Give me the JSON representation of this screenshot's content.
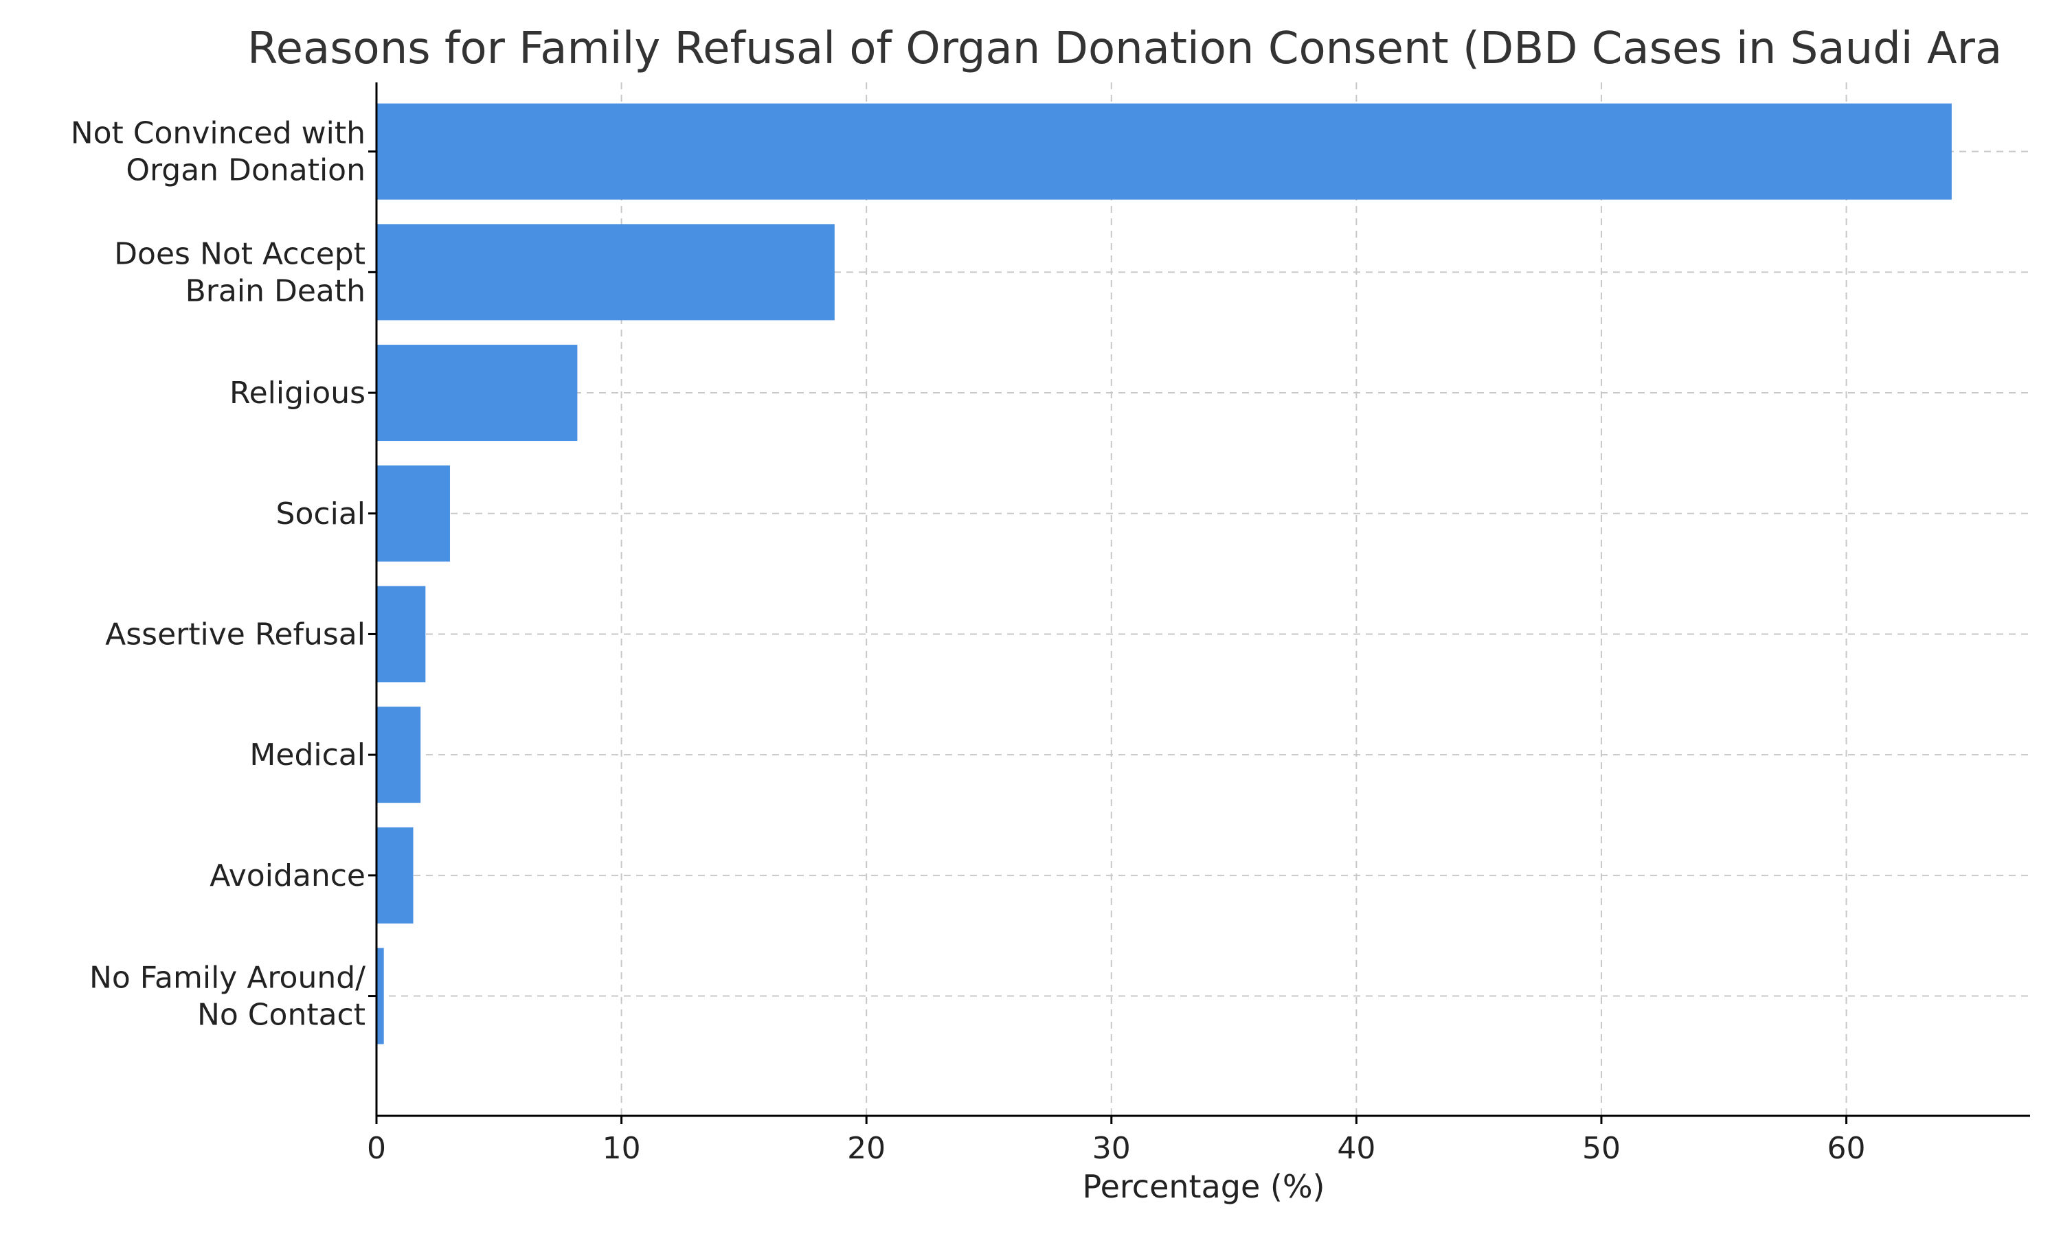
{
  "chart_data": {
    "type": "bar",
    "orientation": "horizontal",
    "title": "Reasons for Family Refusal of Organ Donation Consent (DBD Cases in Saudi Ara",
    "xlabel": "Percentage (%)",
    "ylabel": "",
    "xlim": [
      0,
      67.5
    ],
    "xticks": [
      "0",
      "10",
      "20",
      "30",
      "40",
      "50",
      "60"
    ],
    "grid": true,
    "bar_color": "#4a90e2",
    "categories": [
      [
        "Not Convinced with",
        "Organ Donation"
      ],
      [
        "Does Not Accept",
        "Brain Death"
      ],
      [
        "Religious"
      ],
      [
        "Social"
      ],
      [
        "Assertive Refusal"
      ],
      [
        "Medical"
      ],
      [
        "Avoidance"
      ],
      [
        "No Family Around/",
        "No Contact"
      ]
    ],
    "values": [
      64.3,
      18.7,
      8.2,
      3.0,
      2.0,
      1.8,
      1.5,
      0.3
    ]
  }
}
